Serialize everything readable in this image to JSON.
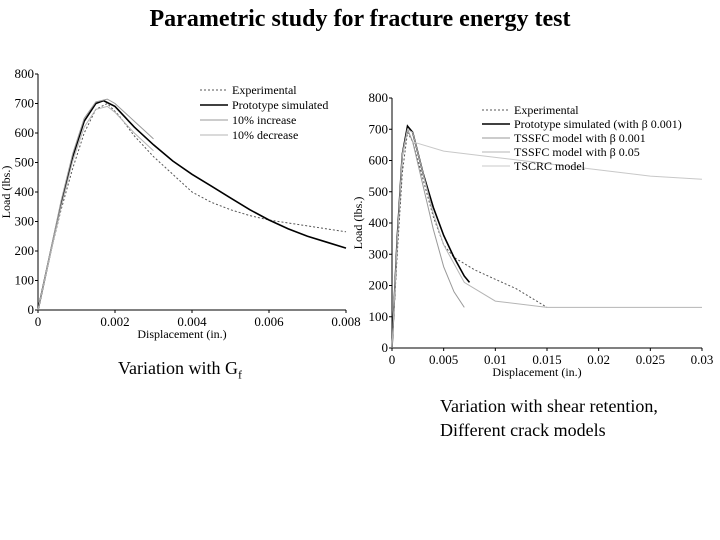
{
  "title": "Parametric study for fracture energy test",
  "captions": {
    "left_main": "Variation with G",
    "left_sub": "f",
    "right_line1": "Variation with shear retention,",
    "right_line2": "Different crack models"
  },
  "chart_data": [
    {
      "type": "line",
      "xlabel": "Displacement (in.)",
      "ylabel": "Load (lbs.)",
      "xlim": [
        0,
        0.008
      ],
      "ylim": [
        0,
        800
      ],
      "xticks": [
        0,
        0.002,
        0.004,
        0.006,
        0.008
      ],
      "xtick_labels": [
        "0",
        "0.002",
        "0.004",
        "0.006",
        "0.008"
      ],
      "yticks": [
        0,
        100,
        200,
        300,
        400,
        500,
        600,
        700,
        800
      ],
      "ytick_labels": [
        "0",
        "100",
        "200",
        "300",
        "400",
        "500",
        "600",
        "700",
        "800"
      ],
      "legend_position": "top-right",
      "grid": false,
      "series": [
        {
          "name": "Experimental",
          "color": "#555555",
          "dash": "2,2",
          "width": 1,
          "x": [
            0,
            0.0003,
            0.0006,
            0.0009,
            0.0012,
            0.0015,
            0.0018,
            0.0021,
            0.0025,
            0.003,
            0.0035,
            0.004,
            0.0045,
            0.005,
            0.0055,
            0.006,
            0.0065,
            0.007,
            0.0075,
            0.008
          ],
          "y": [
            0,
            180,
            340,
            480,
            600,
            680,
            700,
            660,
            590,
            520,
            460,
            400,
            365,
            340,
            320,
            305,
            295,
            285,
            275,
            265
          ]
        },
        {
          "name": "Prototype simulated",
          "color": "#000000",
          "dash": "",
          "width": 1.6,
          "x": [
            0,
            0.0003,
            0.0006,
            0.0009,
            0.0012,
            0.0015,
            0.0017,
            0.002,
            0.0025,
            0.003,
            0.0035,
            0.004,
            0.0045,
            0.005,
            0.0055,
            0.006,
            0.0065,
            0.007,
            0.0075,
            0.008
          ],
          "y": [
            0,
            180,
            360,
            520,
            640,
            700,
            710,
            690,
            620,
            560,
            505,
            460,
            420,
            380,
            340,
            305,
            275,
            250,
            230,
            210
          ]
        },
        {
          "name": "10% increase",
          "color": "#999999",
          "dash": "",
          "width": 1,
          "x": [
            0,
            0.0003,
            0.0006,
            0.0009,
            0.0012,
            0.0015,
            0.0018,
            0.002,
            0.0025,
            0.003
          ],
          "y": [
            0,
            185,
            370,
            530,
            650,
            705,
            715,
            700,
            640,
            580
          ]
        },
        {
          "name": "10% decrease",
          "color": "#b5b5b5",
          "dash": "",
          "width": 1,
          "x": [
            0,
            0.0003,
            0.0006,
            0.0009,
            0.0012,
            0.0015,
            0.0018,
            0.002,
            0.0025,
            0.003
          ],
          "y": [
            0,
            175,
            350,
            505,
            620,
            680,
            690,
            670,
            600,
            540
          ]
        }
      ]
    },
    {
      "type": "line",
      "xlabel": "Displacement (in.)",
      "ylabel": "Load (lbs.)",
      "xlim": [
        0,
        0.03
      ],
      "ylim": [
        0,
        800
      ],
      "xticks": [
        0,
        0.005,
        0.01,
        0.015,
        0.02,
        0.025,
        0.03
      ],
      "xtick_labels": [
        "0",
        "0.005",
        "0.01",
        "0.015",
        "0.02",
        "0.025",
        "0.03"
      ],
      "yticks": [
        0,
        100,
        200,
        300,
        400,
        500,
        600,
        700,
        800
      ],
      "ytick_labels": [
        "0",
        "100",
        "200",
        "300",
        "400",
        "500",
        "600",
        "700",
        "800"
      ],
      "legend_position": "top-right",
      "grid": false,
      "series": [
        {
          "name": "Experimental",
          "color": "#555555",
          "dash": "2,2",
          "width": 1,
          "x": [
            0,
            0.0005,
            0.001,
            0.0015,
            0.002,
            0.003,
            0.004,
            0.005,
            0.006,
            0.008,
            0.01,
            0.012,
            0.014,
            0.015
          ],
          "y": [
            0,
            300,
            560,
            690,
            660,
            540,
            420,
            330,
            290,
            250,
            220,
            190,
            150,
            130
          ]
        },
        {
          "name": "Prototype simulated (with β 0.001)",
          "color": "#000000",
          "dash": "",
          "width": 1.6,
          "x": [
            0,
            0.0005,
            0.001,
            0.0015,
            0.002,
            0.003,
            0.004,
            0.005,
            0.006,
            0.007,
            0.0075
          ],
          "y": [
            0,
            350,
            620,
            710,
            690,
            560,
            450,
            360,
            290,
            230,
            210
          ]
        },
        {
          "name": "TSSFC model with β 0.001",
          "color": "#999999",
          "dash": "",
          "width": 1,
          "x": [
            0,
            0.0005,
            0.001,
            0.0015,
            0.002,
            0.003,
            0.004,
            0.005,
            0.006,
            0.007
          ],
          "y": [
            0,
            340,
            610,
            700,
            660,
            520,
            380,
            260,
            180,
            130
          ]
        },
        {
          "name": "TSSFC model with β 0.05",
          "color": "#b5b5b5",
          "dash": "",
          "width": 1,
          "x": [
            0,
            0.0005,
            0.001,
            0.0015,
            0.002,
            0.003,
            0.004,
            0.005,
            0.007,
            0.01,
            0.015,
            0.02,
            0.025,
            0.03
          ],
          "y": [
            0,
            340,
            620,
            700,
            690,
            560,
            430,
            330,
            210,
            150,
            130,
            130,
            130,
            130
          ]
        },
        {
          "name": "TSCRC model",
          "color": "#c8c8c8",
          "dash": "",
          "width": 1,
          "x": [
            0.002,
            0.005,
            0.01,
            0.015,
            0.02,
            0.025,
            0.03
          ],
          "y": [
            660,
            630,
            610,
            590,
            570,
            550,
            540
          ]
        }
      ]
    }
  ]
}
